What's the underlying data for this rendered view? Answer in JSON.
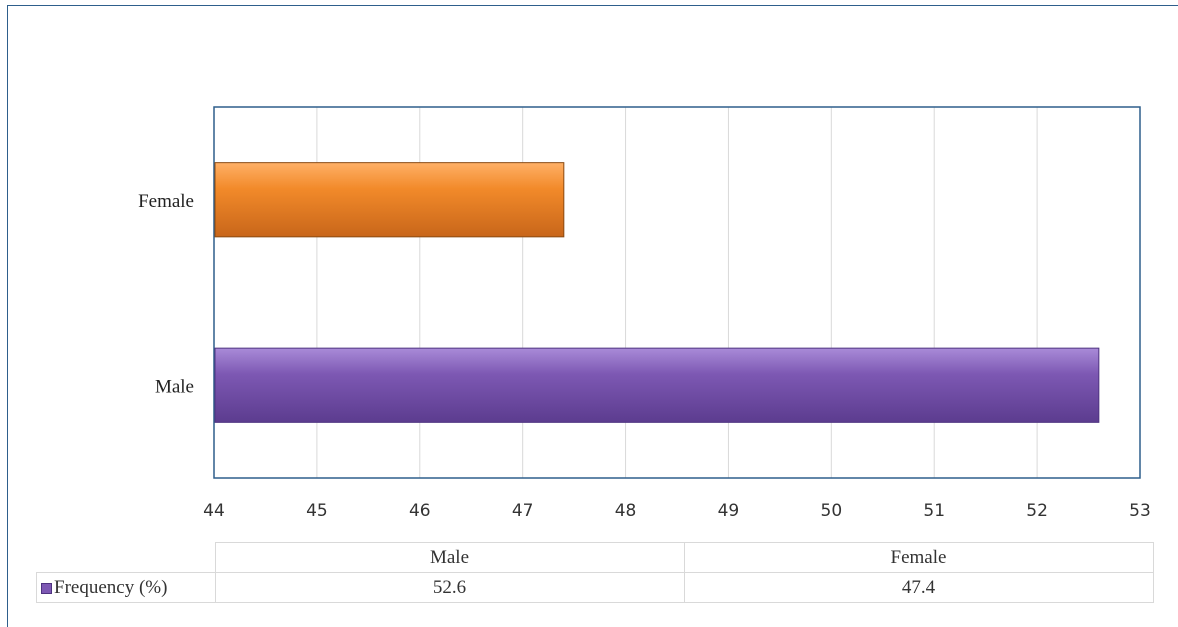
{
  "chart_data": {
    "type": "bar",
    "orientation": "horizontal",
    "categories": [
      "Male",
      "Female"
    ],
    "series": [
      {
        "name": "Frequency (%)",
        "values": [
          52.6,
          47.4
        ],
        "colors": [
          "#7d58b3",
          "#f28a2a"
        ]
      }
    ],
    "xlim": [
      44,
      53
    ],
    "xticks": [
      "44",
      "45",
      "46",
      "47",
      "48",
      "49",
      "50",
      "51",
      "52",
      "53"
    ],
    "grid": true,
    "legend": "data-table-bottom"
  },
  "table": {
    "headers": [
      "Male",
      "Female"
    ],
    "series_label": "Frequency (%)",
    "values": [
      "52.6",
      "47.4"
    ]
  }
}
